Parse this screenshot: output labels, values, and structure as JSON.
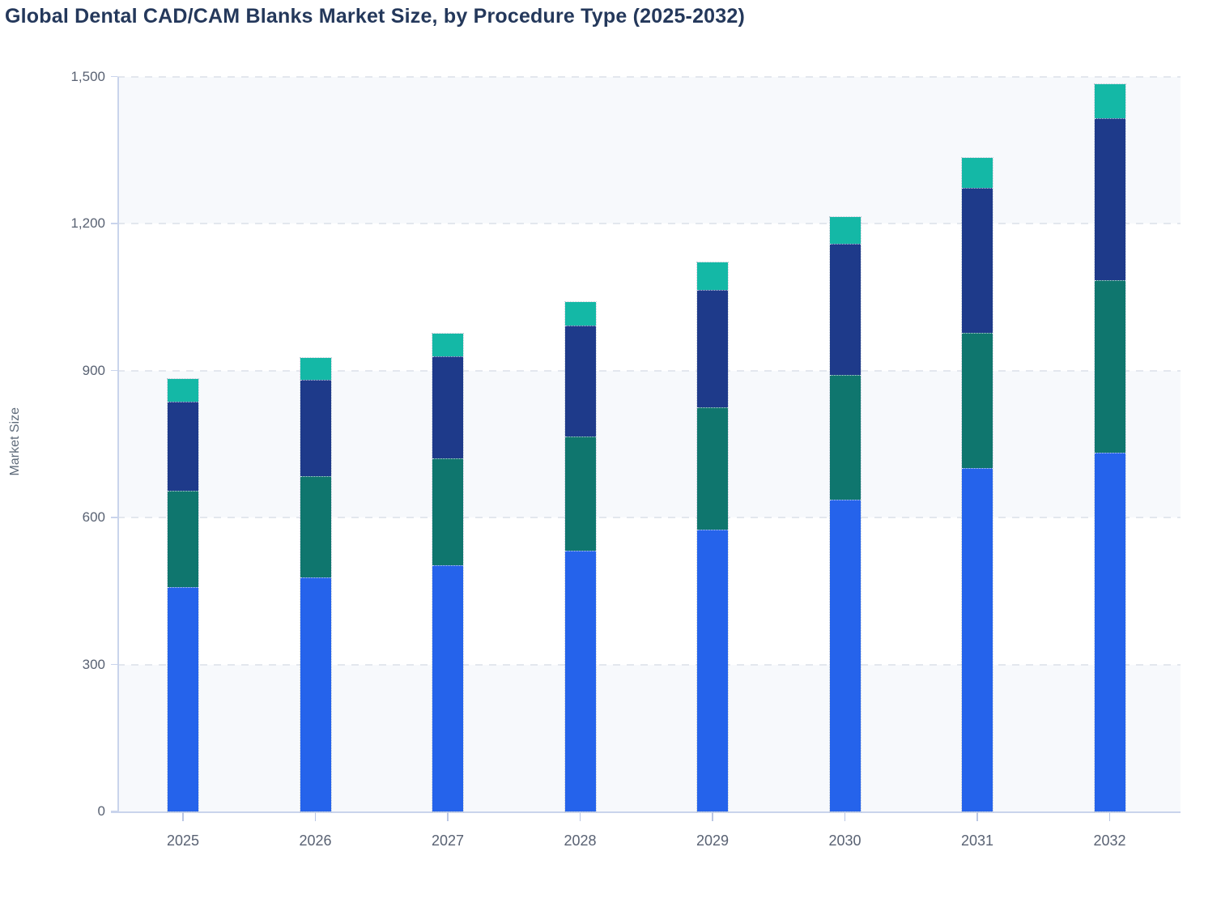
{
  "chart_data": {
    "type": "bar",
    "stacked": true,
    "title": "Global Dental CAD/CAM Blanks Market Size, by Procedure Type (2025-2032)",
    "xlabel": "",
    "ylabel": "Market Size",
    "ylim": [
      0,
      1500
    ],
    "yticks": [
      0,
      300,
      600,
      900,
      1200,
      1500
    ],
    "ytick_labels": [
      "0",
      "300",
      "600",
      "900",
      "1,200",
      "1,500"
    ],
    "categories": [
      "2025",
      "2026",
      "2027",
      "2028",
      "2029",
      "2030",
      "2031",
      "2032"
    ],
    "series": [
      {
        "name": "series-1-bottom-blue",
        "color": "#2563eb",
        "values": [
          458,
          478,
          503,
          533,
          575,
          637,
          701,
          732
        ]
      },
      {
        "name": "series-2-dark-teal",
        "color": "#0f766e",
        "values": [
          197,
          207,
          218,
          233,
          249,
          254,
          276,
          353
        ]
      },
      {
        "name": "series-3-navy",
        "color": "#1e3a8a",
        "values": [
          182,
          196,
          208,
          225,
          240,
          267,
          296,
          330
        ]
      },
      {
        "name": "series-4-top-mint",
        "color": "#14b8a6",
        "values": [
          46,
          45,
          46,
          49,
          57,
          56,
          61,
          70
        ]
      }
    ],
    "totals": [
      883,
      926,
      975,
      1040,
      1121,
      1214,
      1334,
      1485
    ],
    "legend_visible": false,
    "grid": "horizontal-dashed",
    "plot_background": "alternating horizontal bands",
    "colors": {
      "title": "#24385b",
      "tick_label": "#596273",
      "axis_line": "#c9d4ec",
      "band": "#f7f9fc",
      "gridline": "#e3e7ee",
      "page_background": "#ffffff"
    }
  }
}
